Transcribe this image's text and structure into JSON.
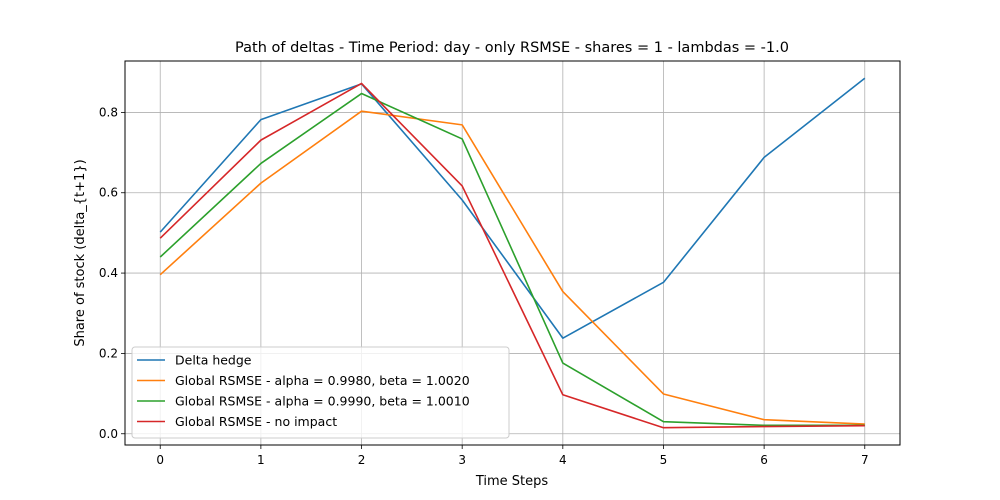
{
  "chart_data": {
    "type": "line",
    "title": "Path of deltas - Time Period: day - only RSMSE - shares = 1 - lambdas = -1.0",
    "xlabel": "Time Steps",
    "ylabel": "Share of stock (delta_{t+1})",
    "x": [
      0,
      1,
      2,
      3,
      4,
      5,
      6,
      7
    ],
    "xticks": [
      "0",
      "1",
      "2",
      "3",
      "4",
      "5",
      "6",
      "7"
    ],
    "yticks": [
      "0.0",
      "0.2",
      "0.4",
      "0.6",
      "0.8"
    ],
    "ytick_values": [
      0.0,
      0.2,
      0.4,
      0.6,
      0.8
    ],
    "xlim": [
      -0.35,
      7.35
    ],
    "ylim": [
      -0.028,
      0.928
    ],
    "grid": true,
    "legend_position": "lower-left",
    "series": [
      {
        "name": "Delta hedge",
        "color": "#1f77b4",
        "values": [
          0.502,
          0.782,
          0.871,
          0.582,
          0.238,
          0.377,
          0.688,
          0.885
        ]
      },
      {
        "name": "Global RSMSE - alpha = 0.9980, beta = 1.0020",
        "color": "#ff7f0e",
        "values": [
          0.396,
          0.624,
          0.803,
          0.769,
          0.354,
          0.099,
          0.035,
          0.024
        ]
      },
      {
        "name": "Global RSMSE - alpha = 0.9990, beta = 1.0010",
        "color": "#2ca02c",
        "values": [
          0.44,
          0.673,
          0.847,
          0.734,
          0.176,
          0.03,
          0.021,
          0.021
        ]
      },
      {
        "name": "Global RSMSE - no impact",
        "color": "#d62728",
        "values": [
          0.487,
          0.731,
          0.872,
          0.617,
          0.097,
          0.015,
          0.018,
          0.02
        ]
      }
    ]
  }
}
